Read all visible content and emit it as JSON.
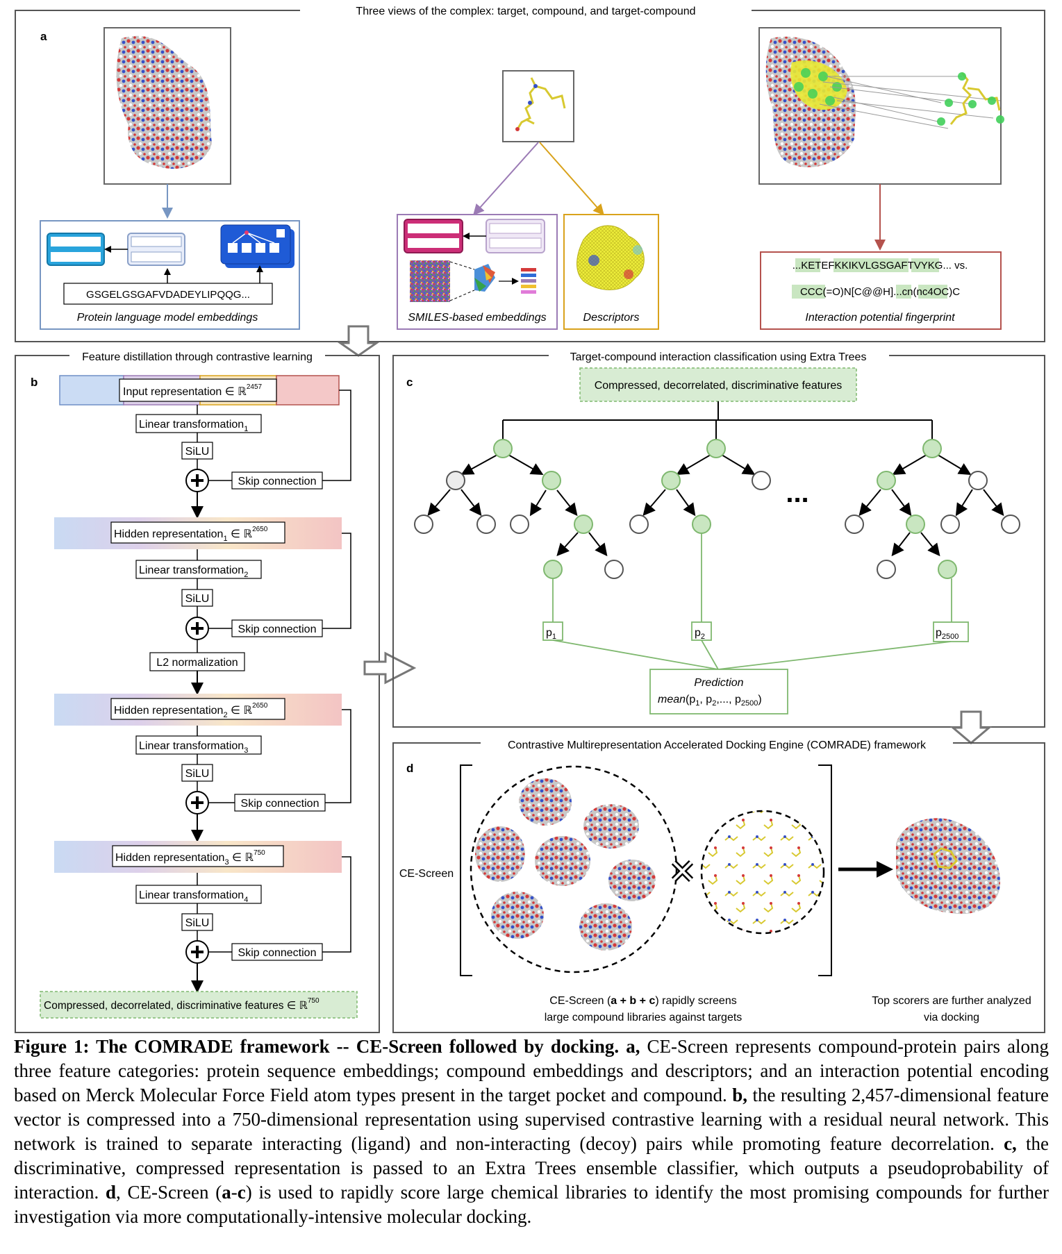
{
  "panel_a": {
    "title": "Three views of the complex: target, compound, and target-compound",
    "letter": "a",
    "protein_sequence": "GSGELGSGAFVDADEYLIPQQG...",
    "protein_caption": "Protein language model embeddings",
    "smiles_caption": "SMILES-based embeddings",
    "descriptors_caption": "Descriptors",
    "fingerprint_line1": "...KETEFKKIKVLGSGAFTVYKG... vs.",
    "fingerprint_line2": "CCC(=O)N[C@@H]...cn(nc4OC)C",
    "fingerprint_caption": "Interaction potential fingerprint"
  },
  "panel_b": {
    "title": "Feature distillation through contrastive learning",
    "letter": "b",
    "input_label": "Input representation ∈ ℝ",
    "input_dim": "2457",
    "linear1": "Linear transformation",
    "linear1_sub": "1",
    "linear2": "Linear transformation",
    "linear2_sub": "2",
    "linear3": "Linear transformation",
    "linear3_sub": "3",
    "linear4": "Linear transformation",
    "linear4_sub": "4",
    "silu": "SiLU",
    "skip": "Skip connection",
    "l2": "L2 normalization",
    "hidden1": "Hidden representation",
    "hidden1_sub": "1",
    "hidden1_set": " ∈ ℝ",
    "hidden1_dim": "2650",
    "hidden2": "Hidden representation",
    "hidden2_sub": "2",
    "hidden2_set": " ∈ ℝ",
    "hidden2_dim": "2650",
    "hidden3": "Hidden representation",
    "hidden3_sub": "3",
    "hidden3_set": " ∈ ℝ",
    "hidden3_dim": "750",
    "output_label": "Compressed, decorrelated, discriminative features ∈ ℝ",
    "output_dim": "750"
  },
  "panel_c": {
    "title": "Target-compound interaction classification using Extra Trees",
    "letter": "c",
    "top_box": "Compressed, decorrelated, discriminative features",
    "ellipsis": "...",
    "p1": "p",
    "p1_sub": "1",
    "p2": "p",
    "p2_sub": "2",
    "p3": "p",
    "p3_sub": "2500",
    "prediction_title": "Prediction",
    "prediction_formula_fn": "mean",
    "prediction_formula_args": "(p",
    "prediction_formula_rest": ", p",
    "prediction_formula_tail": ",..., p",
    "prediction_sub1": "1",
    "prediction_sub2": "2",
    "prediction_sub3": "2500",
    "prediction_close": ")"
  },
  "panel_d": {
    "title": "Contrastive Multirepresentation Accelerated Docking Engine (COMRADE) framework",
    "letter": "d",
    "ce_screen_label": "CE-Screen",
    "screen_caption_line1_pre": "CE-Screen (",
    "screen_caption_line1_bold": "a + b + c",
    "screen_caption_line1_post": ") rapidly screens",
    "screen_caption_line2": "large compound libraries against targets",
    "dock_caption_line1": "Top scorers are further analyzed",
    "dock_caption_line2": "via docking"
  },
  "caption": {
    "bold_title": "Figure 1: The COMRADE framework -- CE-Screen followed by docking.",
    "a_label": "a,",
    "a_text": " CE-Screen represents compound-protein pairs along three feature categories: protein sequence embeddings; compound embeddings and descriptors; and an interaction potential encoding based on Merck Molecular Force Field atom types present in the target pocket and compound. ",
    "b_label": "b,",
    "b_text": " the resulting 2,457-dimensional feature vector is compressed into a 750-dimensional representation using supervised contrastive learning with a residual neural network. This network is trained to separate interacting (ligand) and non-interacting (decoy) pairs while promoting feature decorrelation. ",
    "c_label": "c,",
    "c_text": " the discriminative, compressed representation is passed to an Extra Trees ensemble classifier, which outputs a pseudoprobability of interaction. ",
    "d_label": "d",
    "d_text_1": ", CE-Screen (",
    "d_label_a": "a",
    "d_text_2": "-",
    "d_label_c": "c",
    "d_text_3": ") is used to rapidly score large chemical libraries to identify the most promising compounds for further investigation via more computationally-intensive molecular docking."
  },
  "colors": {
    "green_fill": "#c9e6c1",
    "green_stroke": "#7fb86f",
    "purple": "#9b7bb5",
    "gold": "#d9a21b",
    "rust": "#b4524d",
    "blue": "#7796c2",
    "magenta": "#cc2e77"
  }
}
